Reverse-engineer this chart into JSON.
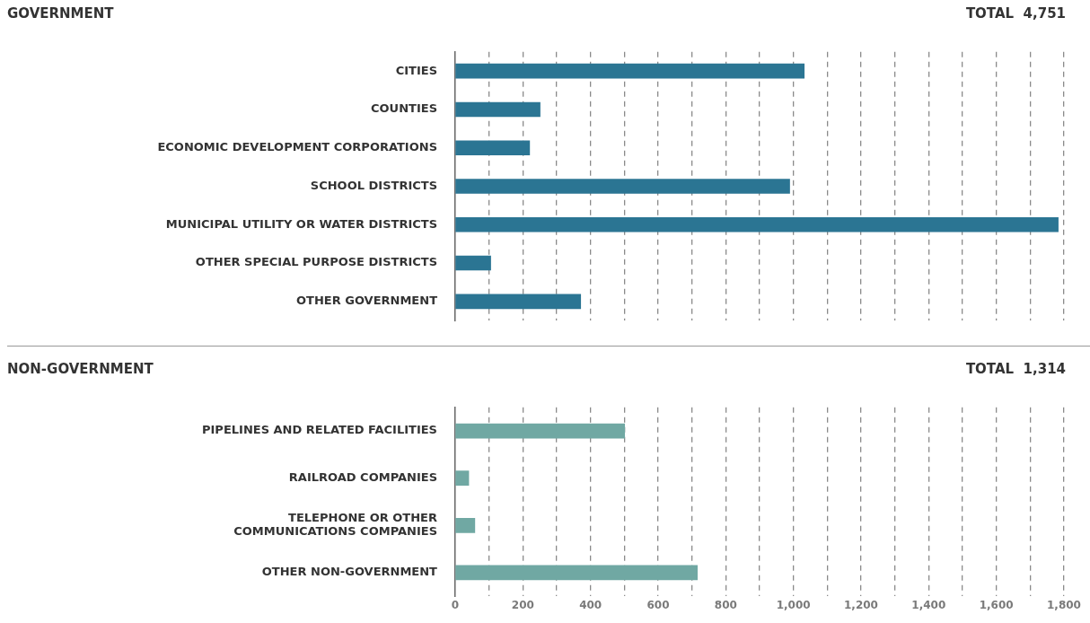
{
  "chart_data": [
    {
      "type": "bar",
      "orientation": "horizontal",
      "title": "GOVERNMENT",
      "annotations": [
        "TOTAL  4,751"
      ],
      "categories": [
        "CITIES",
        "COUNTIES",
        "ECONOMIC DEVELOPMENT CORPORATIONS",
        "SCHOOL DISTRICTS",
        "MUNICIPAL UTILITY OR WATER DISTRICTS",
        "OTHER SPECIAL PURPOSE DISTRICTS",
        "OTHER GOVERNMENT"
      ],
      "values": [
        1032,
        251,
        220,
        989,
        1783,
        105,
        371
      ],
      "color": "#2b7593",
      "xlim": [
        0,
        1800
      ],
      "xticks": [
        0,
        100,
        200,
        300,
        400,
        500,
        600,
        700,
        800,
        900,
        1000,
        1100,
        1200,
        1300,
        1400,
        1500,
        1600,
        1700,
        1800
      ],
      "grid": "x",
      "legend": false,
      "tick_labels": "y"
    },
    {
      "type": "bar",
      "orientation": "horizontal",
      "title": "NON-GOVERNMENT",
      "annotations": [
        "TOTAL  1,314"
      ],
      "categories": [
        "PIPELINES AND RELATED FACILITIES",
        "RAILROAD COMPANIES",
        "TELEPHONE OR OTHER\nCOMMUNICATIONS COMPANIES",
        "OTHER NON-GOVERNMENT"
      ],
      "values": [
        501,
        40,
        58,
        716
      ],
      "color": "#70a8a3",
      "xlim": [
        0,
        1800
      ],
      "xticks": [
        0,
        {
          "value": 100,
          "label": null
        },
        200,
        {
          "value": 300,
          "label": null
        },
        400,
        {
          "value": 500,
          "label": null
        },
        600,
        {
          "value": 700,
          "label": null
        },
        800,
        {
          "value": 900,
          "label": null
        },
        {
          "value": 1000,
          "label": "1,000"
        },
        {
          "value": 1100,
          "label": null
        },
        {
          "value": 1200,
          "label": "1,200"
        },
        {
          "value": 1300,
          "label": null
        },
        {
          "value": 1400,
          "label": "1,400"
        },
        {
          "value": 1500,
          "label": null
        },
        {
          "value": 1600,
          "label": "1,600"
        },
        {
          "value": 1700,
          "label": null
        },
        {
          "value": 1800,
          "label": "1,800"
        }
      ],
      "grid": "x",
      "legend": false
    }
  ]
}
